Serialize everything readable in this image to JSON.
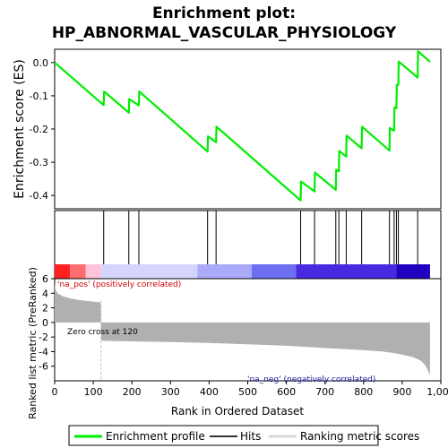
{
  "title_line1": "Enrichment plot:",
  "title_line2": "HP_ABNORMAL_VASCULAR_PHYSIOLOGY",
  "chart_data": {
    "type": "line",
    "title": "Enrichment plot: HP_ABNORMAL_VASCULAR_PHYSIOLOGY",
    "xlabel": "Rank in Ordered Dataset",
    "xlim": [
      0,
      1000
    ],
    "x_ticks": [
      0,
      100,
      200,
      300,
      400,
      500,
      600,
      700,
      800,
      900,
      1000
    ],
    "x_tick_labels": [
      "0",
      "100",
      "200",
      "300",
      "400",
      "500",
      "600",
      "700",
      "800",
      "900",
      "1,000"
    ],
    "es_panel": {
      "ylabel": "Enrichment score (ES)",
      "ylim": [
        -0.44,
        0.04
      ],
      "y_ticks": [
        0.0,
        -0.1,
        -0.2,
        -0.3,
        -0.4
      ],
      "y_tick_labels": [
        "0.0",
        "-0.1",
        "-0.2",
        "-0.3",
        "-0.4"
      ],
      "series": [
        {
          "name": "Enrichment profile",
          "color": "#00ee00",
          "x": [
            0,
            127,
            128,
            192,
            193,
            218,
            219,
            396,
            397,
            418,
            419,
            637,
            638,
            673,
            674,
            728,
            729,
            736,
            737,
            755,
            756,
            795,
            796,
            867,
            868,
            879,
            880,
            885,
            886,
            890,
            891,
            940,
            941,
            972
          ],
          "y": [
            0.0,
            -0.128,
            -0.087,
            -0.151,
            -0.11,
            -0.129,
            -0.087,
            -0.268,
            -0.222,
            -0.24,
            -0.193,
            -0.415,
            -0.358,
            -0.388,
            -0.331,
            -0.383,
            -0.323,
            -0.327,
            -0.266,
            -0.283,
            -0.22,
            -0.258,
            -0.193,
            -0.265,
            -0.197,
            -0.205,
            -0.135,
            -0.137,
            -0.067,
            -0.067,
            0.003,
            -0.045,
            0.034,
            0.002
          ]
        }
      ]
    },
    "hits_panel": {
      "legend_name": "Hits",
      "hit_positions": [
        127,
        192,
        218,
        396,
        418,
        637,
        673,
        728,
        736,
        755,
        795,
        867,
        879,
        885,
        890,
        940
      ]
    },
    "rank_metric_panel": {
      "ylabel": "Ranked list metric (PreRanked)",
      "ylim": [
        -8,
        6
      ],
      "y_ticks": [
        6,
        4,
        2,
        0,
        -2,
        -4,
        -6
      ],
      "y_tick_labels": [
        "6",
        "4",
        "2",
        "0",
        "-2",
        "-4",
        "-6"
      ],
      "fill_color": "#b0b0b0",
      "x": [
        0,
        2,
        5,
        10,
        20,
        40,
        60,
        80,
        100,
        119,
        120,
        121,
        150,
        200,
        300,
        400,
        500,
        600,
        700,
        800,
        850,
        880,
        900,
        930,
        950,
        960,
        965,
        970,
        972
      ],
      "y": [
        5.3,
        4.6,
        4.2,
        3.9,
        3.6,
        3.3,
        3.1,
        2.95,
        2.85,
        2.75,
        0.0,
        -2.5,
        -2.55,
        -2.6,
        -2.7,
        -2.8,
        -3.0,
        -3.2,
        -3.5,
        -3.8,
        -4.0,
        -4.2,
        -4.4,
        -4.8,
        -5.3,
        -5.9,
        -6.4,
        -7.0,
        -7.3
      ],
      "zero_cross_rank": 120,
      "zero_cross_label": "Zero cross at 120",
      "pos_label": "'na_pos' (positively correlated)",
      "neg_label": "'na_neg' (negatively correlated)"
    },
    "legend": {
      "placement": "bottom",
      "entries": [
        "Enrichment profile",
        "Hits",
        "Ranking metric scores"
      ]
    }
  },
  "colorbar": {
    "segments": [
      {
        "from": 0,
        "to": 40,
        "color": "#ff2020"
      },
      {
        "from": 40,
        "to": 80,
        "color": "#ff6e6e"
      },
      {
        "from": 80,
        "to": 120,
        "color": "#ffc2d8"
      },
      {
        "from": 120,
        "to": 370,
        "color": "#d4d4ff"
      },
      {
        "from": 370,
        "to": 510,
        "color": "#aaaaf8"
      },
      {
        "from": 510,
        "to": 625,
        "color": "#6e6ef0"
      },
      {
        "from": 625,
        "to": 885,
        "color": "#4a2ae0"
      },
      {
        "from": 885,
        "to": 972,
        "color": "#2200c0"
      }
    ]
  },
  "colors": {
    "es_line": "#00ee00",
    "hit_line": "#000000",
    "metric_fill": "#b0b0b0",
    "zero_cross_line": "#d8b0b0"
  }
}
